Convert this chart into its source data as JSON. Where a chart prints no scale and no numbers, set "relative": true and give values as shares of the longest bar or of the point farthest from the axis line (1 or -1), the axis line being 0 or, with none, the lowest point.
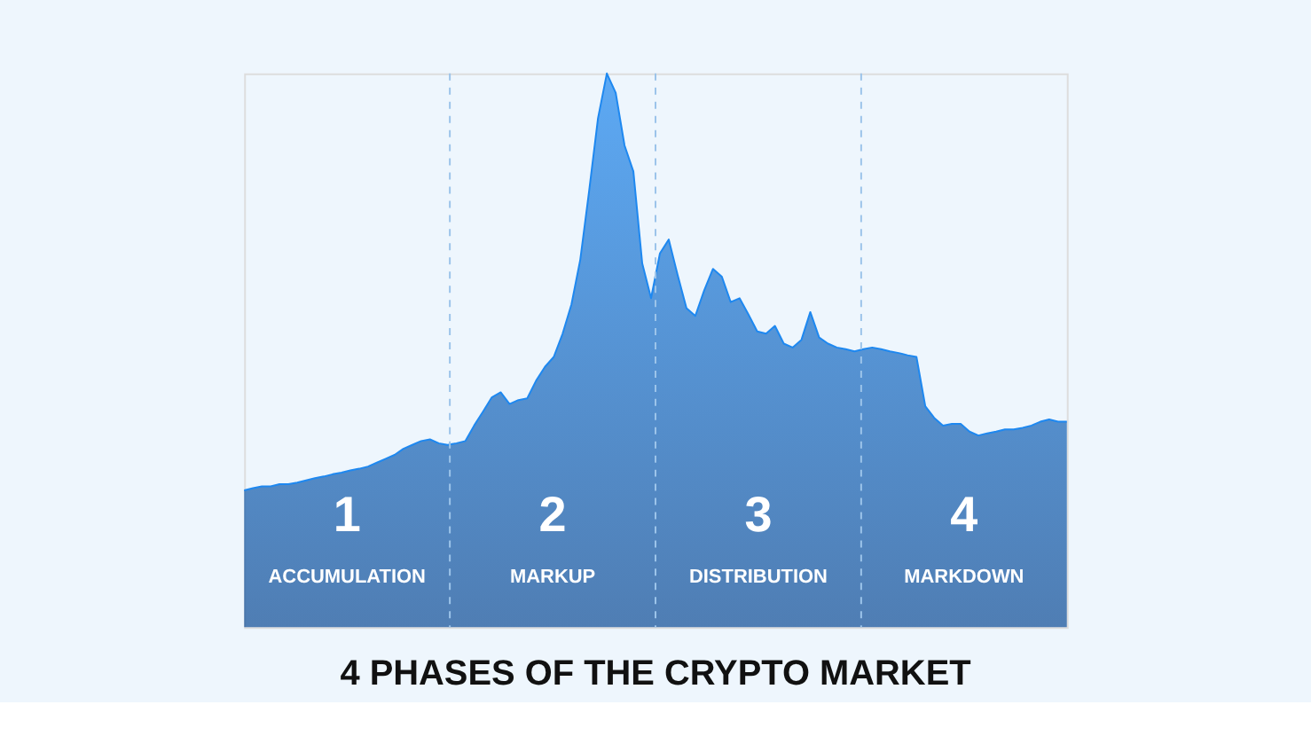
{
  "chart_data": {
    "type": "area",
    "title": "4 PHASES OF THE CRYPTO MARKET",
    "relative": true,
    "categories": [
      null,
      null,
      null,
      null,
      null,
      null,
      null,
      null,
      null,
      null,
      null,
      null,
      null,
      null,
      null,
      null,
      null,
      null,
      null,
      null,
      null,
      null,
      null,
      null,
      null,
      null,
      null,
      null,
      null,
      null,
      null,
      null,
      null,
      null,
      null,
      null,
      null,
      null,
      null,
      null,
      null,
      null,
      null,
      null,
      null,
      null,
      null,
      null,
      null,
      null,
      null,
      null,
      null,
      null,
      null,
      null,
      null,
      null,
      null,
      null,
      null,
      null,
      null,
      null,
      null,
      null,
      null,
      null,
      null,
      null,
      null,
      null,
      null,
      null,
      null,
      null,
      null,
      null,
      null,
      null,
      null,
      null,
      null,
      null,
      null,
      null,
      null,
      null,
      null,
      null,
      null,
      null,
      null,
      null
    ],
    "series": [
      {
        "color": "#1e88f0",
        "values": [
          0.247,
          0.251,
          0.254,
          0.254,
          0.258,
          0.258,
          0.261,
          0.265,
          0.269,
          0.272,
          0.276,
          0.279,
          0.283,
          0.286,
          0.29,
          0.297,
          0.304,
          0.311,
          0.322,
          0.329,
          0.336,
          0.339,
          0.332,
          0.329,
          0.332,
          0.336,
          0.364,
          0.389,
          0.415,
          0.424,
          0.403,
          0.41,
          0.413,
          0.445,
          0.47,
          0.488,
          0.53,
          0.583,
          0.664,
          0.788,
          0.919,
          1,
          0.965,
          0.87,
          0.823,
          0.657,
          0.594,
          0.675,
          0.7,
          0.636,
          0.576,
          0.562,
          0.608,
          0.647,
          0.633,
          0.587,
          0.594,
          0.565,
          0.534,
          0.53,
          0.544,
          0.512,
          0.505,
          0.519,
          0.569,
          0.523,
          0.512,
          0.505,
          0.502,
          0.498,
          0.502,
          0.505,
          0.502,
          0.498,
          0.495,
          0.491,
          0.488,
          0.399,
          0.378,
          0.364,
          0.367,
          0.367,
          0.353,
          0.346,
          0.35,
          0.353,
          0.357,
          0.357,
          0.36,
          0.364,
          0.371,
          0.375,
          0.371,
          0.371
        ]
      }
    ],
    "grid": "x",
    "annotations": [
      "1",
      "ACCUMULATION",
      "2",
      "MARKUP",
      "3",
      "DISTRIBUTION",
      "4",
      "MARKDOWN"
    ]
  }
}
